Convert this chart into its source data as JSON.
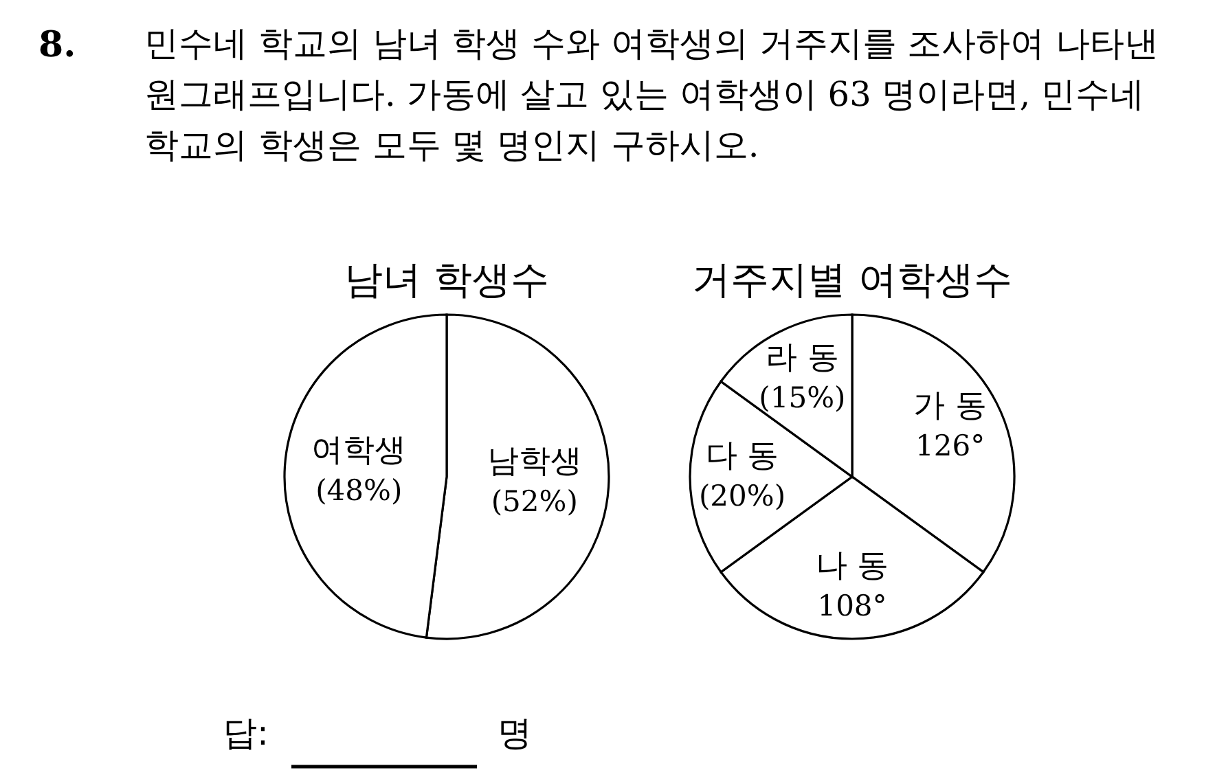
{
  "chart_data": [
    {
      "type": "pie",
      "title": "남녀 학생수",
      "categories": [
        "남학생",
        "여학생"
      ],
      "values": [
        52,
        48
      ],
      "colors": [
        "#ffffff",
        "#ffffff"
      ],
      "value_labels": [
        "(52%)",
        "(48%)"
      ],
      "annotations": [
        "8.",
        "민수네 학교의 남녀 학생 수와 여학생의 거주지를 조사하여 나타낸",
        "원그래프입니다. 가동에 살고 있는 여학생이 63 명이라면, 민수네",
        "학교의 학생은 모두 몇 명인지 구하시오.",
        "답:",
        "명"
      ]
    },
    {
      "type": "pie",
      "title": "거주지별 여학생수",
      "categories": [
        "가 동",
        "나 동",
        "다 동",
        "라 동"
      ],
      "values": [
        35,
        30,
        20,
        15
      ],
      "colors": [
        "#ffffff",
        "#ffffff",
        "#ffffff",
        "#ffffff"
      ],
      "value_labels": [
        null,
        null,
        "(20%)",
        "(15%)"
      ],
      "annotations": [
        {
          "text": "126°",
          "x": "가 동"
        },
        {
          "text": "108°",
          "x": "나 동"
        }
      ]
    }
  ]
}
